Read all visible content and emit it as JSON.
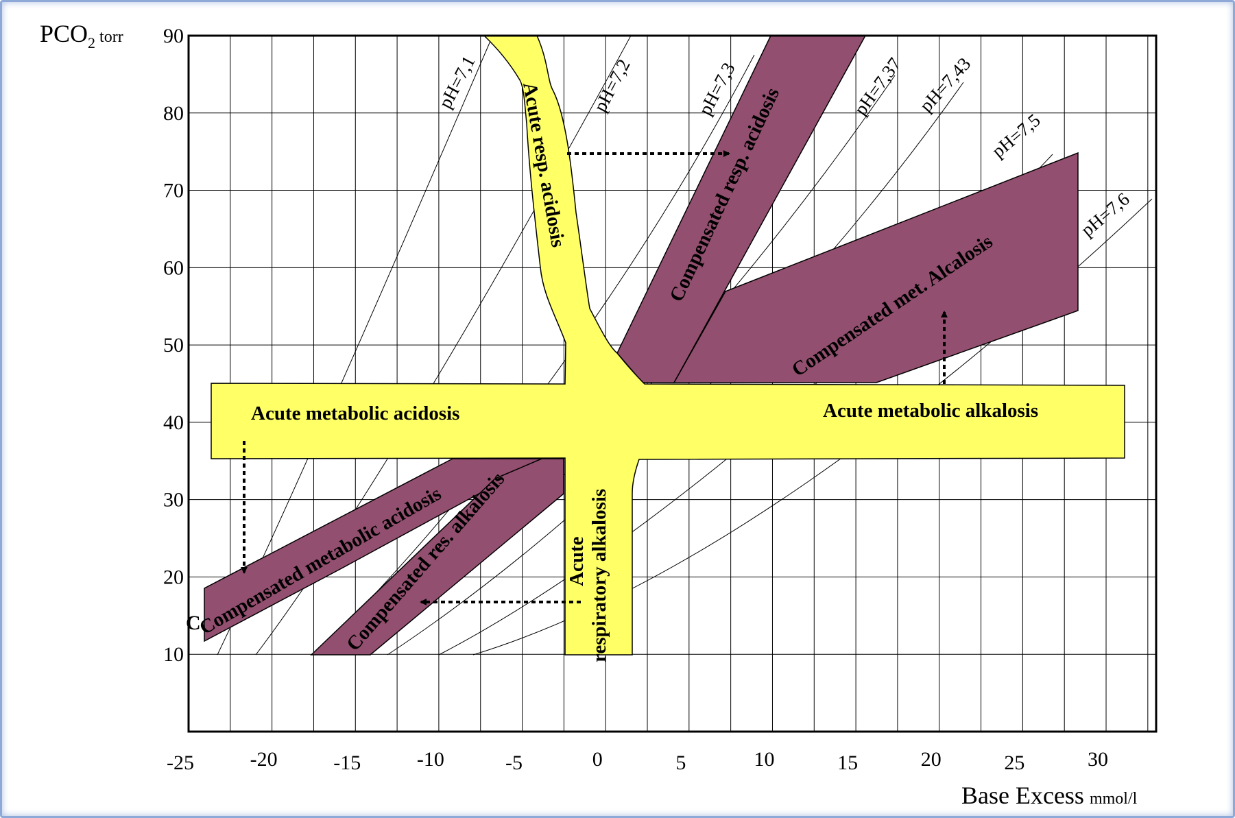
{
  "chart_data": {
    "type": "diagram",
    "y_axis_label": {
      "main": "PCO",
      "sub": "2",
      "unit": "torr"
    },
    "x_axis_label": {
      "main": "Base Excess",
      "unit": "mmol/l"
    },
    "x_ticks": [
      "-25",
      "-20",
      "-15",
      "-10",
      "-5",
      "0",
      "5",
      "10",
      "15",
      "20",
      "25",
      "30"
    ],
    "y_ticks": [
      "90",
      "80",
      "70",
      "60",
      "50",
      "40",
      "30",
      "20",
      "10"
    ],
    "xlim": [
      -25,
      33
    ],
    "ylim": [
      0,
      90
    ],
    "ph_lines": [
      "pH=7,1",
      "pH=7,2",
      "pH=7,3",
      "pH=7,37",
      "pH=7,43",
      "pH=7,5",
      "pH=7,6"
    ],
    "regions": {
      "acute_resp_acidosis": "Acute resp. acidosis",
      "comp_resp_acidosis": "Compensated resp. acidosis",
      "comp_met_alkalosis": "Compensated met. Alcalosis",
      "acute_met_acidosis": "Acute metabolic acidosis",
      "acute_met_alkalosis": "Acute metabolic alkalosis",
      "comp_met_acidosis": "Compensated metabolic acidosis",
      "comp_res_alkalosis": "Compensated res. alkalosis",
      "acute_resp_alkalosis_1": "Acute",
      "acute_resp_alkalosis_2": "respiratory alkalosis"
    },
    "edge_fragment": "C",
    "colors": {
      "acute": "#ffff66",
      "compensated": "#934f6f",
      "grid": "#000000"
    }
  }
}
